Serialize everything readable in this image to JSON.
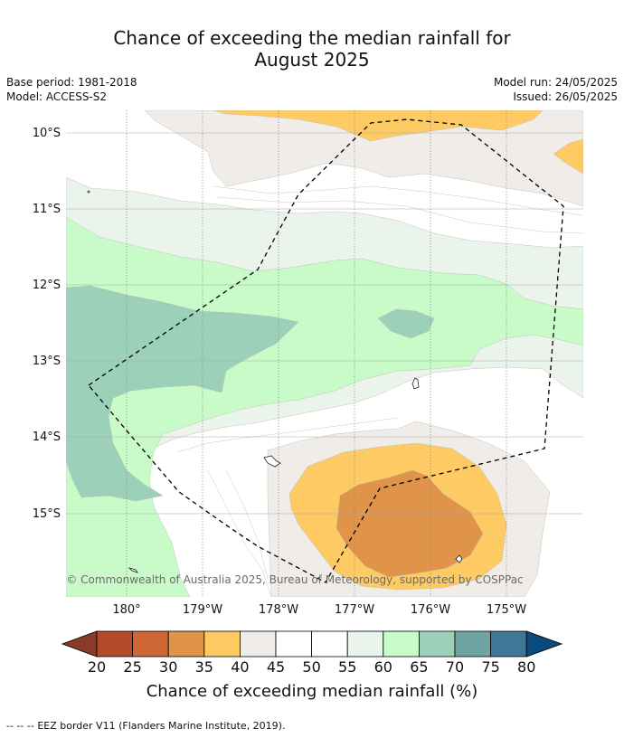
{
  "title": {
    "line1": "Chance of exceeding the median rainfall for",
    "line2": "August 2025"
  },
  "meta": {
    "base_period": "Base period: 1981-2018",
    "model": "Model: ACCESS-S2",
    "model_run": "Model run: 24/05/2025",
    "issued": "Issued: 26/05/2025"
  },
  "map": {
    "lat_labels": [
      "10°S",
      "11°S",
      "12°S",
      "13°S",
      "14°S",
      "15°S"
    ],
    "lon_labels": [
      "180°",
      "179°W",
      "178°W",
      "177°W",
      "176°W",
      "175°W"
    ],
    "attribution": "© Commonwealth of Australia 2025, Bureau of Meteorology, supported by COSPPac"
  },
  "colorbar": {
    "ticks": [
      "20",
      "25",
      "30",
      "35",
      "40",
      "45",
      "50",
      "55",
      "60",
      "65",
      "70",
      "75",
      "80"
    ],
    "colors": [
      "#b34a29",
      "#cc6634",
      "#e0944a",
      "#fdca64",
      "#f0ece8",
      "#ffffff",
      "#ffffff",
      "#eaf4ea",
      "#c9fbc9",
      "#9dd0b8",
      "#6ea5a4",
      "#3f7897"
    ],
    "under_color": "#8b3a2a",
    "over_color": "#0c4a7e",
    "label": "Chance of exceeding median rainfall (%)"
  },
  "footer": {
    "legend_symbol": "--  --  --",
    "legend_text": "EEZ border V11 (Flanders Marine Institute, 2019)."
  }
}
